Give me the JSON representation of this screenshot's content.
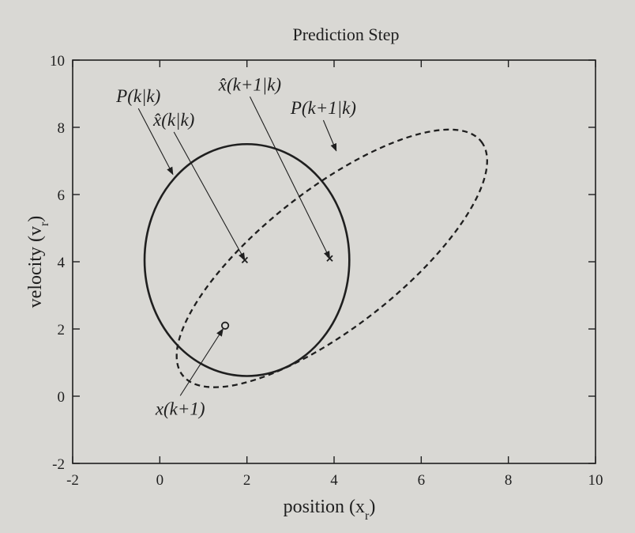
{
  "chart_data": {
    "type": "line",
    "title": "Prediction Step",
    "xlabel": "position (x",
    "xlabel_sub": "r",
    "ylabel": "velocity (v",
    "ylabel_sub": "r",
    "xlim": [
      -2,
      10
    ],
    "ylim": [
      -2,
      10
    ],
    "x_ticks": [
      -2,
      0,
      2,
      4,
      6,
      8,
      10
    ],
    "y_ticks": [
      -2,
      0,
      2,
      4,
      6,
      8,
      10
    ],
    "x_tick_labels": [
      "-2",
      "0",
      "2",
      "4",
      "6",
      "8",
      "10"
    ],
    "y_tick_labels": [
      "-2",
      "0",
      "2",
      "4",
      "6",
      "8",
      "10"
    ],
    "grid": false,
    "series": [
      {
        "label": "P(k|k)",
        "shape": "ellipse",
        "style": "solid",
        "center": [
          2,
          4.05
        ],
        "semi_x": 2.35,
        "semi_y": 3.45,
        "angle_deg": 0
      },
      {
        "label": "P(k+1|k)",
        "shape": "ellipse",
        "style": "dashed",
        "center": [
          3.95,
          4.1
        ],
        "semi_major": 4.35,
        "semi_minor": 2.05,
        "angle_deg": 38
      }
    ],
    "points": [
      {
        "label": "x̂(k|k)",
        "x": 1.95,
        "y": 4.05,
        "marker": "x"
      },
      {
        "label": "x̂(k+1|k)",
        "x": 3.9,
        "y": 4.1,
        "marker": "x"
      },
      {
        "label": "x(k+1)",
        "x": 1.5,
        "y": 2.1,
        "marker": "o"
      }
    ],
    "annotations": [
      {
        "text": "P(k|k)",
        "text_at": [
          -1.0,
          8.75
        ],
        "target": [
          0.3,
          6.6
        ]
      },
      {
        "text": "x̂(k|k)",
        "text_at": [
          -0.15,
          8.05
        ],
        "target": [
          1.95,
          4.05
        ]
      },
      {
        "text": "x̂(k+1|k)",
        "text_at": [
          1.35,
          9.1
        ],
        "target": [
          3.9,
          4.1
        ]
      },
      {
        "text": "P(k+1|k)",
        "text_at": [
          3.0,
          8.4
        ],
        "target": [
          4.05,
          7.3
        ]
      },
      {
        "text": "x(k+1)",
        "text_at": [
          -0.1,
          -0.55
        ],
        "target": [
          1.45,
          2.0
        ]
      }
    ]
  }
}
